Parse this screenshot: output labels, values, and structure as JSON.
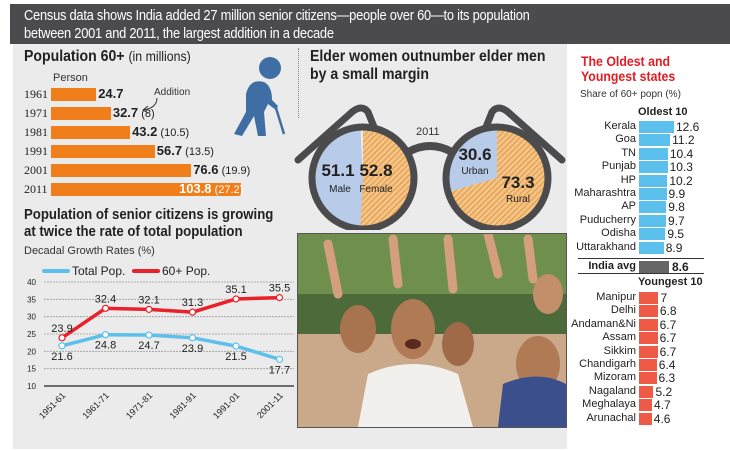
{
  "header": {
    "line1": "Census data shows India added 27 million senior citizens—people over 60—to its population",
    "line2": "between 2001 and  2011, the largest addition in a decade"
  },
  "colors": {
    "orange": "#f07f1b",
    "blue": "#5bc0eb",
    "red": "#e8212a",
    "light_blue": "#b8cbe8",
    "hatch_orange": "#e9a55b",
    "dark": "#4b4b4d",
    "icon_blue": "#3e6ea3",
    "title_red": "#e31b23"
  },
  "chart_data": [
    {
      "type": "bar",
      "orientation": "horizontal",
      "title": "Population 60+",
      "title_suffix": "(in millions)",
      "column_label": "Person",
      "annotation": "Addition",
      "categories": [
        "1961",
        "1971",
        "1981",
        "1991",
        "2001",
        "2011"
      ],
      "values": [
        24.7,
        32.7,
        43.2,
        56.7,
        76.6,
        103.8
      ],
      "additions": [
        null,
        "8",
        "10.5",
        "13.5",
        "19.9",
        "27.2"
      ],
      "labels": [
        "24.7",
        "32.7",
        "43.2",
        "56.7",
        "76.6",
        "103.8"
      ],
      "addition_labels": [
        "",
        "(8)",
        "(10.5)",
        "(13.5)",
        "(19.9)",
        "(27.2)"
      ]
    },
    {
      "type": "pie",
      "title": "Elder women outnumber elder men by a small margin",
      "year": "2011",
      "pies": [
        {
          "name": "gender",
          "slices": [
            {
              "label": "Male",
              "value": 51.1,
              "text": "51.1"
            },
            {
              "label": "Female",
              "value": 52.8,
              "text": "52.8"
            }
          ]
        },
        {
          "name": "location",
          "slices": [
            {
              "label": "Urban",
              "value": 30.6,
              "text": "30.6"
            },
            {
              "label": "Rural",
              "value": 73.3,
              "text": "73.3"
            }
          ]
        }
      ]
    },
    {
      "type": "line",
      "title_line1": "Population of senior citizens is growing",
      "title_line2": "at twice the rate of total population",
      "ylabel": "Decadal Growth Rates (%)",
      "categories": [
        "1951-61",
        "1961-71",
        "1971-81",
        "1981-91",
        "1991-01",
        "2001-11"
      ],
      "series": [
        {
          "name": "Total Pop.",
          "values": [
            21.6,
            24.8,
            24.7,
            23.9,
            21.5,
            17.7
          ],
          "labels": [
            "21.6",
            "24.8",
            "24.7",
            "23.9",
            "21.5",
            "17.7"
          ]
        },
        {
          "name": "60+ Pop.",
          "values": [
            23.9,
            32.4,
            32.1,
            31.3,
            35.1,
            35.5
          ],
          "labels": [
            "23.9",
            "32.4",
            "32.1",
            "31.3",
            "35.1",
            "35.5"
          ]
        }
      ],
      "ylim": [
        10,
        40
      ],
      "yticks": [
        "10",
        "15",
        "20",
        "25",
        "30",
        "35",
        "40"
      ],
      "grid": true,
      "legend": "top-left"
    },
    {
      "type": "bar",
      "orientation": "horizontal",
      "title_line1": "The Oldest and",
      "title_line2": "Youngest states",
      "subtitle": "Share of 60+ popn (%)",
      "oldest_label": "Oldest 10",
      "oldest": [
        {
          "state": "Kerala",
          "value": 12.6,
          "text": "12.6"
        },
        {
          "state": "Goa",
          "value": 11.2,
          "text": "11.2"
        },
        {
          "state": "TN",
          "value": 10.4,
          "text": "10.4"
        },
        {
          "state": "Punjab",
          "value": 10.3,
          "text": "10.3"
        },
        {
          "state": "HP",
          "value": 10.2,
          "text": "10.2"
        },
        {
          "state": "Maharashtra",
          "value": 9.9,
          "text": "9.9"
        },
        {
          "state": "AP",
          "value": 9.8,
          "text": "9.8"
        },
        {
          "state": "Puducherry",
          "value": 9.7,
          "text": "9.7"
        },
        {
          "state": "Odisha",
          "value": 9.5,
          "text": "9.5"
        },
        {
          "state": "Uttarakhand",
          "value": 8.9,
          "text": "8.9"
        }
      ],
      "average": {
        "state": "India avg",
        "value": 8.6,
        "text": "8.6"
      },
      "youngest_label": "Youngest 10",
      "youngest": [
        {
          "state": "Manipur",
          "value": 7,
          "text": "7"
        },
        {
          "state": "Delhi",
          "value": 6.8,
          "text": "6.8"
        },
        {
          "state": "Andaman&Ni",
          "value": 6.7,
          "text": "6.7"
        },
        {
          "state": "Assam",
          "value": 6.7,
          "text": "6.7"
        },
        {
          "state": "Sikkim",
          "value": 6.7,
          "text": "6.7"
        },
        {
          "state": "Chandigarh",
          "value": 6.4,
          "text": "6.4"
        },
        {
          "state": "Mizoram",
          "value": 6.3,
          "text": "6.3"
        },
        {
          "state": "Nagaland",
          "value": 5.2,
          "text": "5.2"
        },
        {
          "state": "Meghalaya",
          "value": 4.7,
          "text": "4.7"
        },
        {
          "state": "Arunachal",
          "value": 4.6,
          "text": "4.6"
        }
      ]
    }
  ],
  "photo": {
    "description": "laughing-senior-citizens-photo"
  }
}
